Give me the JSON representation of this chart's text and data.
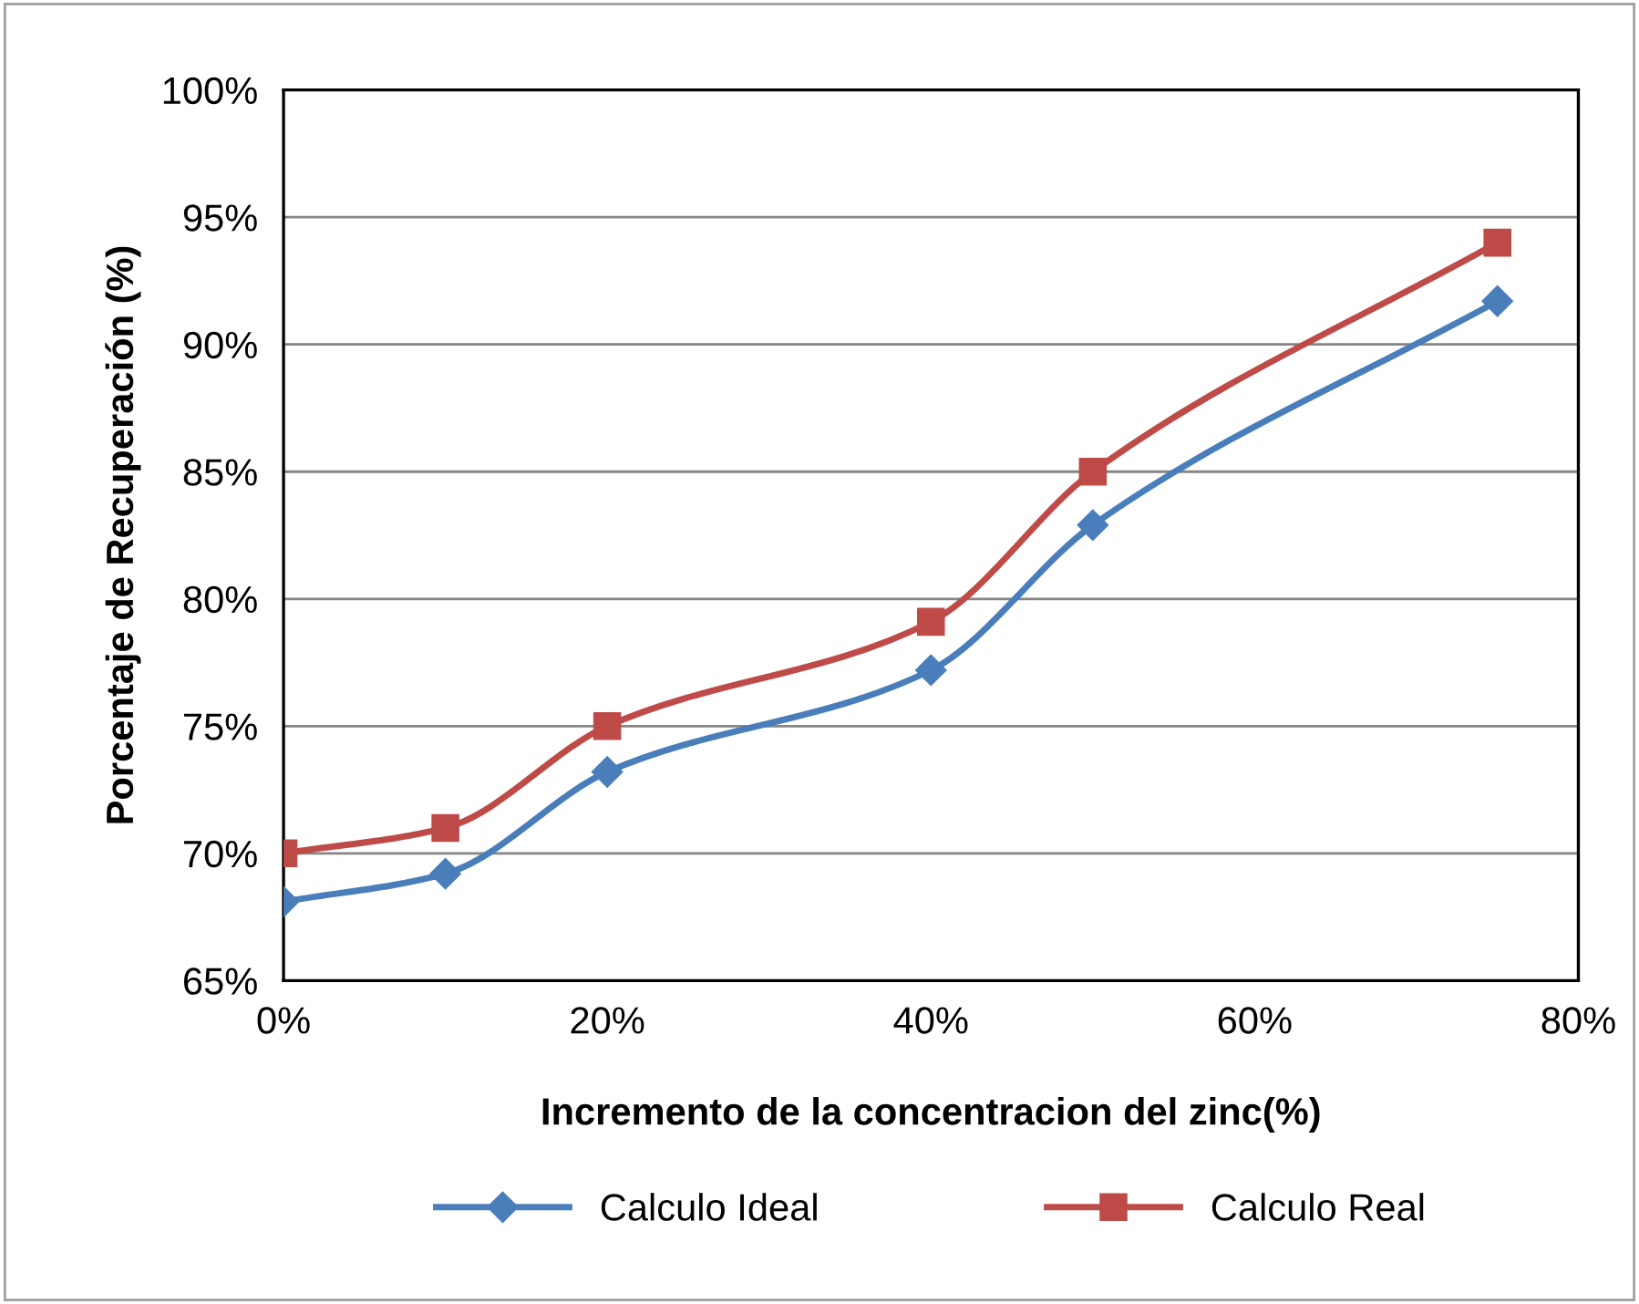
{
  "chart_data": {
    "type": "line",
    "xlabel": "Incremento de la concentracion del zinc(%)",
    "ylabel": "Porcentaje de Recuperación (%)",
    "x": [
      0,
      10,
      20,
      40,
      50,
      75
    ],
    "series": [
      {
        "name": "Calculo Ideal",
        "color": "#4a7ebb",
        "marker": "diamond",
        "values": [
          68.1,
          69.2,
          73.2,
          77.2,
          82.9,
          91.7
        ]
      },
      {
        "name": "Calculo Real",
        "color": "#be4b48",
        "marker": "square",
        "values": [
          70.0,
          71.0,
          75.0,
          79.1,
          85.0,
          94.0
        ]
      }
    ],
    "xlim": [
      0,
      80
    ],
    "xticks": [
      {
        "value": 0,
        "label": "0%"
      },
      {
        "value": 20,
        "label": "20%"
      },
      {
        "value": 40,
        "label": "40%"
      },
      {
        "value": 60,
        "label": "60%"
      },
      {
        "value": 80,
        "label": "80%"
      }
    ],
    "ylim": [
      65,
      100
    ],
    "yticks": [
      {
        "value": 65,
        "label": "65%"
      },
      {
        "value": 70,
        "label": "70%"
      },
      {
        "value": 75,
        "label": "75%"
      },
      {
        "value": 80,
        "label": "80%"
      },
      {
        "value": 85,
        "label": "85%"
      },
      {
        "value": 90,
        "label": "90%"
      },
      {
        "value": 95,
        "label": "95%"
      },
      {
        "value": 100,
        "label": "100%"
      }
    ],
    "grid": "y",
    "legend": "bottom",
    "line_style": "solid"
  }
}
